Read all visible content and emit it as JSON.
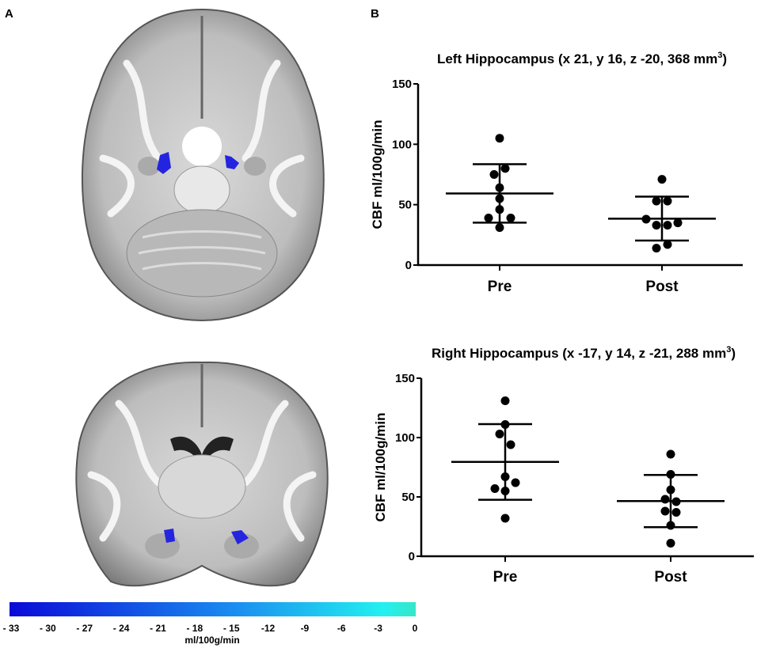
{
  "panels": {
    "a": "A",
    "b": "B"
  },
  "colorbar": {
    "ticks": [
      "- 33",
      "- 30",
      "- 27",
      "- 24",
      "- 21",
      "- 18",
      "- 15",
      "-12",
      "-9",
      "-6",
      "-3",
      "0"
    ],
    "unit": "ml/100g/min",
    "color_start": "#0a0ad8",
    "color_mid": "#1a8cf0",
    "color_end": "#38e6c8"
  },
  "blob_color": "#2424e0",
  "chart_data": [
    {
      "type": "scatter",
      "title": "Left Hippocampus (x 21, y 16, z -20, 368 mm",
      "title_sup": "3",
      "title_end": ")",
      "ylabel": "CBF ml/100g/min",
      "xlabel": "",
      "ylim": [
        0,
        150
      ],
      "yticks": [
        "0",
        "50",
        "100",
        "150"
      ],
      "ytick_values": [
        0,
        50,
        100,
        150
      ],
      "categories": [
        "Pre",
        "Post"
      ],
      "series": [
        {
          "name": "Pre",
          "values": [
            105,
            80,
            75,
            64,
            55,
            46,
            39,
            39,
            31
          ],
          "mean": 59.3,
          "sd_upper": 83.5,
          "sd_lower": 35.1
        },
        {
          "name": "Post",
          "values": [
            71,
            53,
            53,
            38,
            35,
            33,
            33,
            17,
            14
          ],
          "mean": 38.4,
          "sd_upper": 56.7,
          "sd_lower": 20.3
        }
      ]
    },
    {
      "type": "scatter",
      "title": "Right Hippocampus (x -17, y 14, z -21, 288 mm",
      "title_sup": "3",
      "title_end": ")",
      "ylabel": "CBF ml/100g/min",
      "xlabel": "",
      "ylim": [
        0,
        150
      ],
      "yticks": [
        "0",
        "50",
        "100",
        "150"
      ],
      "ytick_values": [
        0,
        50,
        100,
        150
      ],
      "categories": [
        "Pre",
        "Post"
      ],
      "series": [
        {
          "name": "Pre",
          "values": [
            131,
            111,
            103,
            94,
            67,
            62,
            57,
            55,
            32
          ],
          "mean": 79.5,
          "sd_upper": 111.3,
          "sd_lower": 47.6
        },
        {
          "name": "Post",
          "values": [
            86,
            69,
            56,
            48,
            46,
            38,
            37,
            26,
            11
          ],
          "mean": 46.5,
          "sd_upper": 68.5,
          "sd_lower": 24.5
        }
      ]
    }
  ]
}
